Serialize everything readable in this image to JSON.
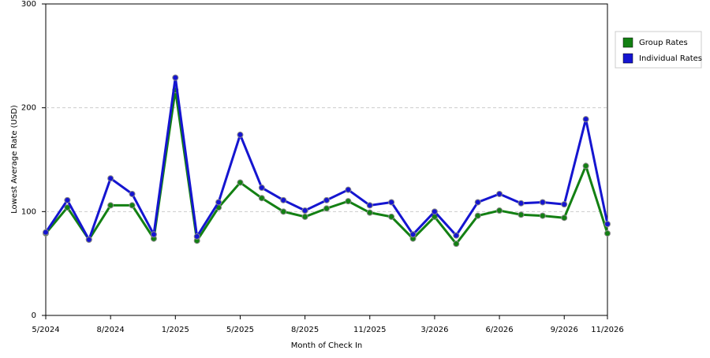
{
  "chart_data": {
    "type": "line",
    "x_label": "Month of Check In",
    "y_label": "Lowest Average Rate (USD)",
    "categories": [
      "5/2024",
      null,
      null,
      "8/2024",
      null,
      null,
      "1/2025",
      null,
      null,
      "5/2025",
      null,
      null,
      "8/2025",
      null,
      null,
      "11/2025",
      null,
      null,
      "3/2026",
      null,
      null,
      "6/2026",
      null,
      null,
      "9/2026",
      null,
      "11/2026"
    ],
    "series": [
      {
        "name": "Group Rates",
        "color": "#138013",
        "values": [
          79,
          104,
          73,
          106,
          106,
          74,
          217,
          72,
          104,
          128,
          113,
          100,
          95,
          103,
          110,
          99,
          95,
          74,
          95,
          69,
          96,
          101,
          97,
          96,
          94,
          144,
          79
        ]
      },
      {
        "name": "Individual Rates",
        "color": "#1515d0",
        "values": [
          80,
          111,
          73,
          132,
          117,
          78,
          229,
          76,
          109,
          174,
          123,
          111,
          101,
          111,
          121,
          106,
          109,
          78,
          100,
          77,
          109,
          117,
          108,
          109,
          107,
          189,
          88
        ]
      }
    ],
    "ylim": [
      0,
      300
    ],
    "yticks": [
      0,
      100,
      200,
      300
    ],
    "grid": true,
    "legend": "right"
  }
}
